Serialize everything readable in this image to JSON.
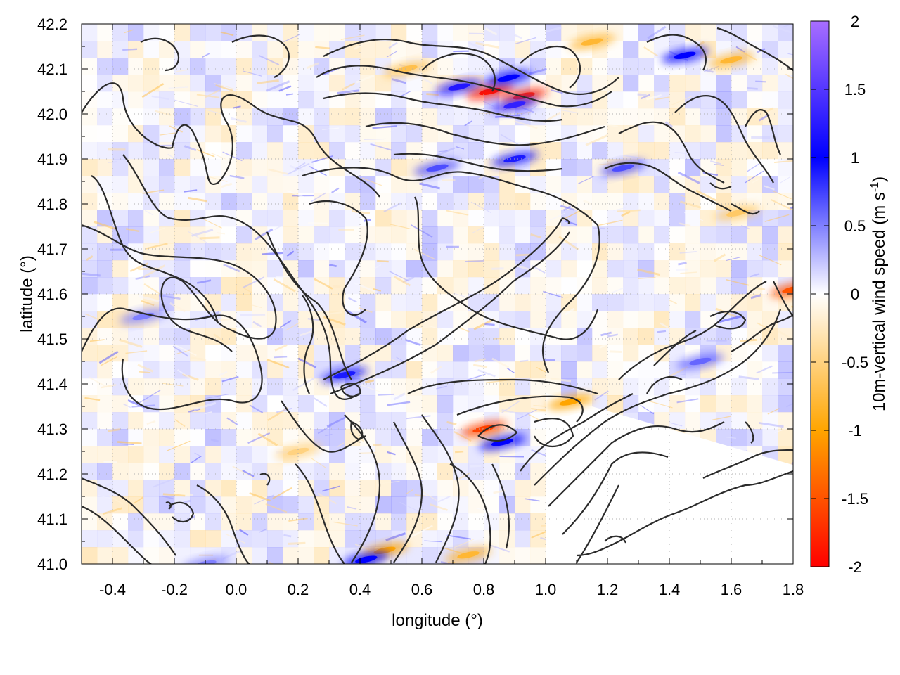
{
  "chart_data": {
    "type": "heatmap",
    "xlabel": "longitude (°)",
    "ylabel": "latitude (°)",
    "colorbar_label_main": "10m-vertical wind speed (m s",
    "colorbar_label_exp": "-1",
    "colorbar_label_close": ")",
    "xlim": [
      -0.5,
      1.8
    ],
    "ylim": [
      41.0,
      42.2
    ],
    "x_ticks": [
      {
        "value": -0.4,
        "label": "-0.4"
      },
      {
        "value": -0.2,
        "label": "-0.2"
      },
      {
        "value": 0.0,
        "label": "0.0"
      },
      {
        "value": 0.2,
        "label": "0.2"
      },
      {
        "value": 0.4,
        "label": "0.4"
      },
      {
        "value": 0.6,
        "label": "0.6"
      },
      {
        "value": 0.8,
        "label": "0.8"
      },
      {
        "value": 1.0,
        "label": "1.0"
      },
      {
        "value": 1.2,
        "label": "1.2"
      },
      {
        "value": 1.4,
        "label": "1.4"
      },
      {
        "value": 1.6,
        "label": "1.6"
      },
      {
        "value": 1.8,
        "label": "1.8"
      }
    ],
    "y_ticks": [
      {
        "value": 41.0,
        "label": "41.0"
      },
      {
        "value": 41.1,
        "label": "41.1"
      },
      {
        "value": 41.2,
        "label": "41.2"
      },
      {
        "value": 41.3,
        "label": "41.3"
      },
      {
        "value": 41.4,
        "label": "41.4"
      },
      {
        "value": 41.5,
        "label": "41.5"
      },
      {
        "value": 41.6,
        "label": "41.6"
      },
      {
        "value": 41.7,
        "label": "41.7"
      },
      {
        "value": 41.8,
        "label": "41.8"
      },
      {
        "value": 41.9,
        "label": "41.9"
      },
      {
        "value": 42.0,
        "label": "42.0"
      },
      {
        "value": 42.1,
        "label": "42.1"
      },
      {
        "value": 42.2,
        "label": "42.2"
      }
    ],
    "colorbar": {
      "range": [
        -2,
        2
      ],
      "ticks": [
        {
          "value": 2,
          "label": "2"
        },
        {
          "value": 1.5,
          "label": "1.5"
        },
        {
          "value": 1,
          "label": "1"
        },
        {
          "value": 0.5,
          "label": "0.5"
        },
        {
          "value": 0,
          "label": "0"
        },
        {
          "value": -0.5,
          "label": "-0.5"
        },
        {
          "value": -1,
          "label": "-1"
        },
        {
          "value": -1.5,
          "label": "-1.5"
        },
        {
          "value": -2,
          "label": "-2"
        }
      ],
      "stops": [
        {
          "value": -2,
          "color": "#ff0000"
        },
        {
          "value": -1,
          "color": "#ffa500"
        },
        {
          "value": 0,
          "color": "#ffffff"
        },
        {
          "value": 1,
          "color": "#0000ff"
        },
        {
          "value": 2,
          "color": "#a86eff"
        }
      ]
    },
    "hotspots": [
      {
        "lon": 0.82,
        "lat": 42.05,
        "value": -1.9
      },
      {
        "lon": 0.93,
        "lat": 42.04,
        "value": -1.8
      },
      {
        "lon": 0.72,
        "lat": 42.06,
        "value": 1.2
      },
      {
        "lon": 0.9,
        "lat": 42.02,
        "value": 1.3
      },
      {
        "lon": 0.88,
        "lat": 42.08,
        "value": 1.0
      },
      {
        "lon": 0.8,
        "lat": 41.3,
        "value": -1.6
      },
      {
        "lon": 0.86,
        "lat": 41.27,
        "value": 1.0
      },
      {
        "lon": 1.08,
        "lat": 41.36,
        "value": -1.0
      },
      {
        "lon": 1.8,
        "lat": 41.61,
        "value": -1.5
      },
      {
        "lon": 0.48,
        "lat": 41.03,
        "value": -1.0
      },
      {
        "lon": 0.42,
        "lat": 41.01,
        "value": 1.0
      },
      {
        "lon": 1.45,
        "lat": 42.13,
        "value": 1.0
      },
      {
        "lon": 1.6,
        "lat": 42.12,
        "value": -0.8
      },
      {
        "lon": 0.75,
        "lat": 41.02,
        "value": -0.8
      },
      {
        "lon": 0.35,
        "lat": 41.42,
        "value": 0.9
      },
      {
        "lon": 0.55,
        "lat": 42.1,
        "value": -0.7
      },
      {
        "lon": 1.15,
        "lat": 42.16,
        "value": -0.8
      },
      {
        "lon": 1.62,
        "lat": 41.78,
        "value": -0.6
      },
      {
        "lon": 0.9,
        "lat": 41.9,
        "value": 0.9
      },
      {
        "lon": 1.25,
        "lat": 41.88,
        "value": 0.7
      },
      {
        "lon": 0.65,
        "lat": 41.88,
        "value": 0.7
      },
      {
        "lon": -0.3,
        "lat": 41.55,
        "value": 0.5
      },
      {
        "lon": 1.5,
        "lat": 41.45,
        "value": 0.6
      },
      {
        "lon": 0.2,
        "lat": 41.25,
        "value": -0.5
      },
      {
        "lon": -0.1,
        "lat": 41.0,
        "value": 0.5
      }
    ],
    "calm_region": [
      [
        1.0,
        41.0
      ],
      [
        1.8,
        41.0
      ],
      [
        1.8,
        41.22
      ],
      [
        1.0,
        41.38
      ]
    ]
  }
}
